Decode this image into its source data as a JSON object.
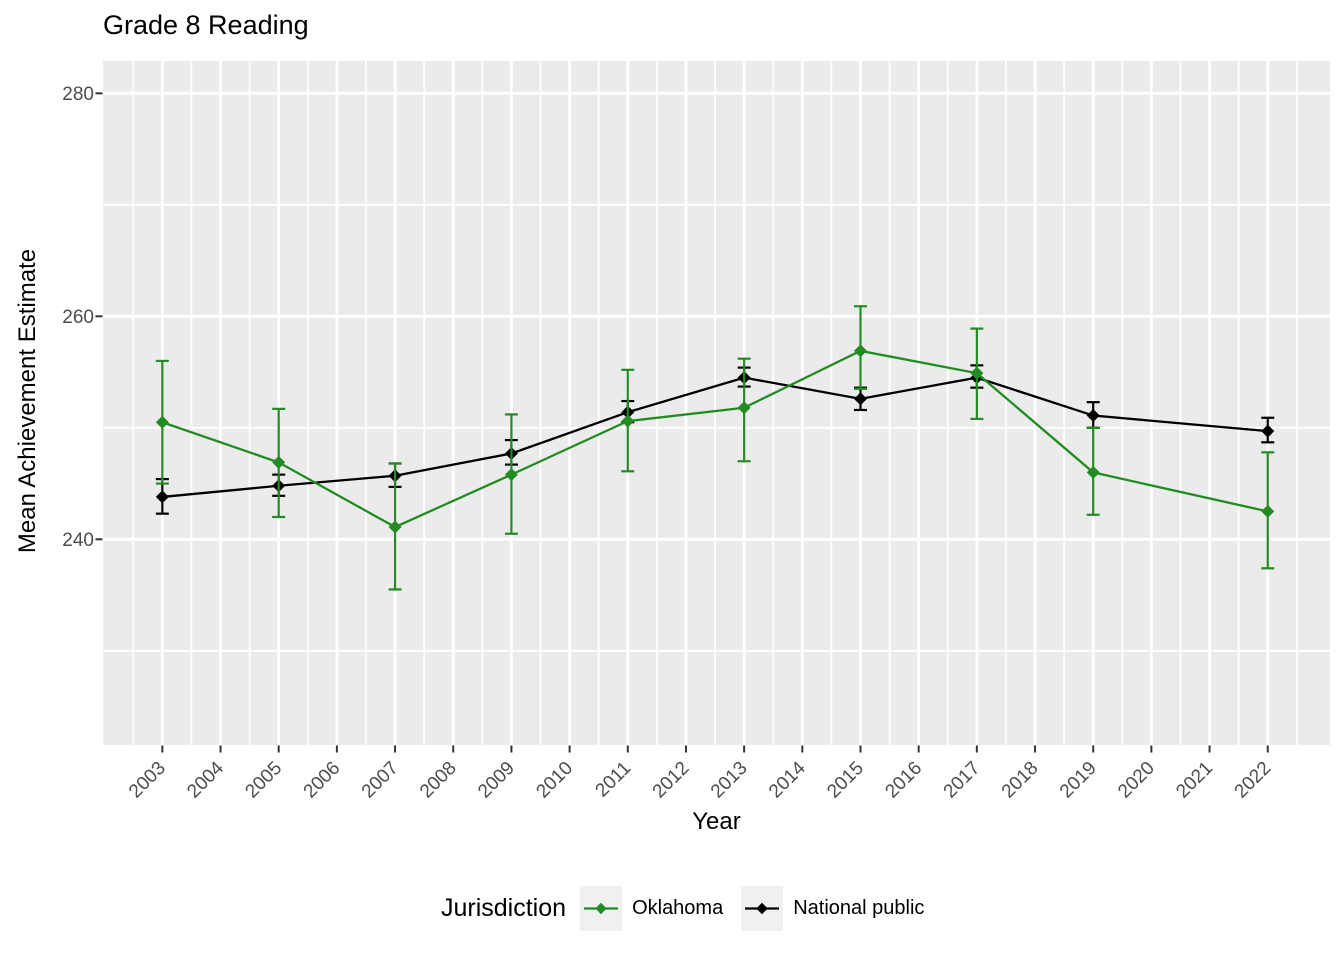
{
  "chart_data": {
    "type": "line",
    "title": "Grade 8 Reading",
    "xlabel": "Year",
    "ylabel": "Mean Achievement Estimate",
    "legend_title": "Jurisdiction",
    "legend_position": "bottom",
    "grid": true,
    "x": [
      2003,
      2005,
      2007,
      2009,
      2011,
      2013,
      2015,
      2017,
      2019,
      2022
    ],
    "series": [
      {
        "name": "Oklahoma",
        "color": "#228B22",
        "values": [
          250.5,
          246.9,
          241.1,
          245.8,
          250.6,
          251.8,
          256.9,
          254.9,
          246.0,
          242.5
        ],
        "ci_low": [
          245.0,
          242.0,
          235.5,
          240.5,
          246.1,
          247.0,
          253.5,
          250.8,
          242.2,
          237.4
        ],
        "ci_high": [
          256.0,
          251.7,
          246.8,
          251.2,
          255.2,
          256.2,
          260.9,
          258.9,
          250.0,
          247.8
        ]
      },
      {
        "name": "National public",
        "color": "#000000",
        "values": [
          243.8,
          244.8,
          245.7,
          247.7,
          251.4,
          254.5,
          252.6,
          254.5,
          251.1,
          249.7
        ],
        "ci_low": [
          242.3,
          243.9,
          244.7,
          246.7,
          250.5,
          253.7,
          251.6,
          253.6,
          250.0,
          248.7
        ],
        "ci_high": [
          245.4,
          245.8,
          246.8,
          248.9,
          252.4,
          255.4,
          253.6,
          255.6,
          252.3,
          250.9
        ]
      }
    ],
    "x_ticks": [
      2003,
      2004,
      2005,
      2006,
      2007,
      2008,
      2009,
      2010,
      2011,
      2012,
      2013,
      2014,
      2015,
      2016,
      2017,
      2018,
      2019,
      2020,
      2021,
      2022
    ],
    "x_minor_ticks": [
      2002.5,
      2003.5,
      2004.5,
      2005.5,
      2006.5,
      2007.5,
      2008.5,
      2009.5,
      2010.5,
      2011.5,
      2012.5,
      2013.5,
      2014.5,
      2015.5,
      2016.5,
      2017.5,
      2018.5,
      2019.5,
      2020.5,
      2021.5,
      2022.5
    ],
    "y_ticks": [
      240,
      260,
      280
    ],
    "y_minor_ticks": [
      230,
      250,
      270
    ],
    "xlim": [
      2001.98,
      2023.07
    ],
    "ylim": [
      221.55,
      282.9
    ],
    "colors": {
      "panel": "#EBEBEB",
      "grid": "#FFFFFF",
      "tick": "#333333",
      "tick_label": "#4D4D4D",
      "title": "#000000"
    }
  },
  "legend": {
    "title": "Jurisdiction",
    "items": [
      {
        "label": "Oklahoma",
        "color": "#228B22"
      },
      {
        "label": "National public",
        "color": "#000000"
      }
    ]
  }
}
